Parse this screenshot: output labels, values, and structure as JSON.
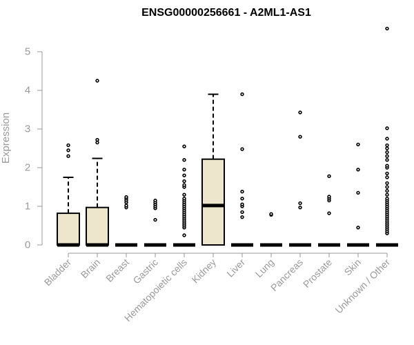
{
  "chart_data": {
    "type": "box",
    "title": "ENSG00000256661 - A2ML1-AS1",
    "ylabel": "Expression",
    "xlabel": "",
    "ylim": [
      0,
      5.6
    ],
    "yticks": [
      0,
      1,
      2,
      3,
      4,
      5
    ],
    "grid": false,
    "box_fill": "#ede6cc",
    "box_stroke": "#000000",
    "categories": [
      "Bladder",
      "Brain",
      "Breast",
      "Gastric",
      "Hematopoietic cells",
      "Kidney",
      "Liver",
      "Lung",
      "Pancreas",
      "Prostate",
      "Skin",
      "Unknown / Other"
    ],
    "boxes": [
      {
        "name": "Bladder",
        "q1": 0,
        "median": 0,
        "q3": 0.82,
        "whisker_low": 0,
        "whisker_high": 1.75,
        "outliers": [
          2.3,
          2.45,
          2.58
        ]
      },
      {
        "name": "Brain",
        "q1": 0,
        "median": 0,
        "q3": 0.97,
        "whisker_low": 0,
        "whisker_high": 2.24,
        "outliers": [
          2.65,
          2.72,
          4.25
        ]
      },
      {
        "name": "Breast",
        "q1": 0,
        "median": 0,
        "q3": 0,
        "whisker_low": 0,
        "whisker_high": 0,
        "outliers": [
          0.97,
          1.02,
          1.1,
          1.15,
          1.2,
          1.24
        ]
      },
      {
        "name": "Gastric",
        "q1": 0,
        "median": 0,
        "q3": 0,
        "whisker_low": 0,
        "whisker_high": 0,
        "outliers": [
          0.65,
          0.95,
          1.0,
          1.05,
          1.1,
          1.15
        ]
      },
      {
        "name": "Hematopoietic cells",
        "q1": 0,
        "median": 0,
        "q3": 0,
        "whisker_low": 0,
        "whisker_high": 0,
        "outliers": [
          0.25,
          0.45,
          0.5,
          0.55,
          0.6,
          0.65,
          0.7,
          0.75,
          0.8,
          0.85,
          0.9,
          0.95,
          1.0,
          1.05,
          1.1,
          1.15,
          1.2,
          1.3,
          1.5,
          1.55,
          1.65,
          1.8,
          1.95,
          2.2,
          2.55
        ]
      },
      {
        "name": "Kidney",
        "q1": 0,
        "median": 1.02,
        "q3": 2.22,
        "whisker_low": 0,
        "whisker_high": 3.9,
        "outliers": []
      },
      {
        "name": "Liver",
        "q1": 0,
        "median": 0,
        "q3": 0,
        "whisker_low": 0,
        "whisker_high": 0,
        "outliers": [
          0.72,
          0.85,
          1.0,
          1.05,
          1.2,
          1.38,
          2.48,
          3.9
        ]
      },
      {
        "name": "Lung",
        "q1": 0,
        "median": 0,
        "q3": 0,
        "whisker_low": 0,
        "whisker_high": 0,
        "outliers": [
          0.78,
          0.8
        ]
      },
      {
        "name": "Pancreas",
        "q1": 0,
        "median": 0,
        "q3": 0,
        "whisker_low": 0,
        "whisker_high": 0,
        "outliers": [
          0.97,
          1.08,
          2.8,
          3.43
        ]
      },
      {
        "name": "Prostate",
        "q1": 0,
        "median": 0,
        "q3": 0,
        "whisker_low": 0,
        "whisker_high": 0,
        "outliers": [
          0.82,
          1.15,
          1.2,
          1.25,
          1.78
        ]
      },
      {
        "name": "Skin",
        "q1": 0,
        "median": 0,
        "q3": 0,
        "whisker_low": 0,
        "whisker_high": 0,
        "outliers": [
          0.45,
          1.35,
          1.95,
          2.6
        ]
      },
      {
        "name": "Unknown / Other",
        "q1": 0,
        "median": 0,
        "q3": 0,
        "whisker_low": 0,
        "whisker_high": 0,
        "outliers": [
          0.3,
          0.35,
          0.4,
          0.45,
          0.5,
          0.55,
          0.6,
          0.65,
          0.7,
          0.75,
          0.8,
          0.85,
          0.9,
          0.95,
          1.0,
          1.05,
          1.1,
          1.15,
          1.2,
          1.3,
          1.4,
          1.5,
          1.6,
          1.75,
          1.85,
          2.0,
          2.05,
          2.2,
          2.3,
          2.4,
          2.5,
          2.58,
          2.75,
          3.02,
          5.6
        ]
      }
    ]
  }
}
